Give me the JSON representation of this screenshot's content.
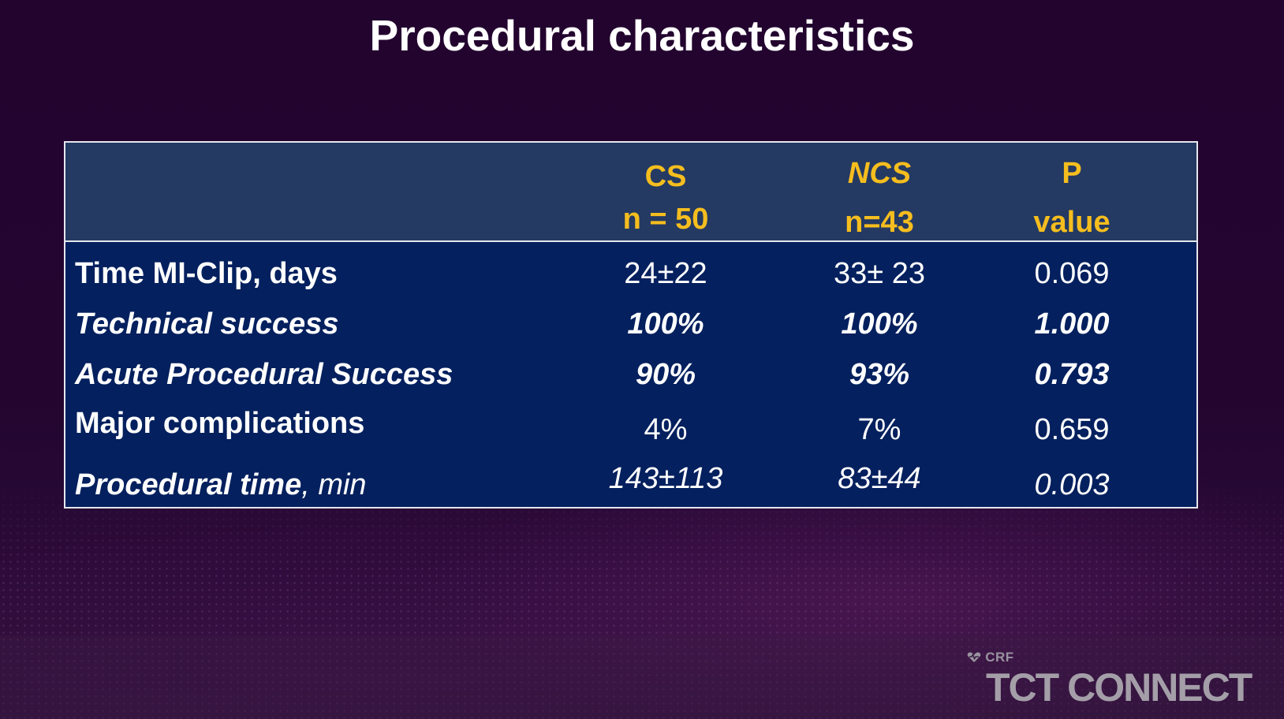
{
  "title": "Procedural characteristics",
  "table": {
    "header": {
      "col1": {
        "line1": "CS",
        "line2": "n = 50"
      },
      "col2": {
        "line1": "NCS",
        "line2": "n=43"
      },
      "col3": {
        "line1": "P",
        "line2": "value"
      }
    },
    "rows": [
      {
        "label": "Time MI-Clip, days",
        "cs": "24±22",
        "ncs": "33± 23",
        "p": "0.069"
      },
      {
        "label": "Technical success",
        "cs": "100%",
        "ncs": "100%",
        "p": "1.000"
      },
      {
        "label": "Acute Procedural Success",
        "cs": "90%",
        "ncs": "93%",
        "p": "0.793"
      },
      {
        "label": "Major complications",
        "cs": "4%",
        "ncs": "7%",
        "p": "0.659"
      },
      {
        "label_main": "Procedural time",
        "label_unit": ", min",
        "cs": "143±113",
        "ncs": "83±44",
        "p": "0.003"
      }
    ]
  },
  "logo": {
    "crf": "CRF",
    "brand": "TCT CONNECT"
  },
  "colors": {
    "background": "#22052f",
    "header_bg": "#243a62",
    "body_bg": "#04205e",
    "header_text": "#f5bd1e",
    "body_text": "#ffffff"
  }
}
